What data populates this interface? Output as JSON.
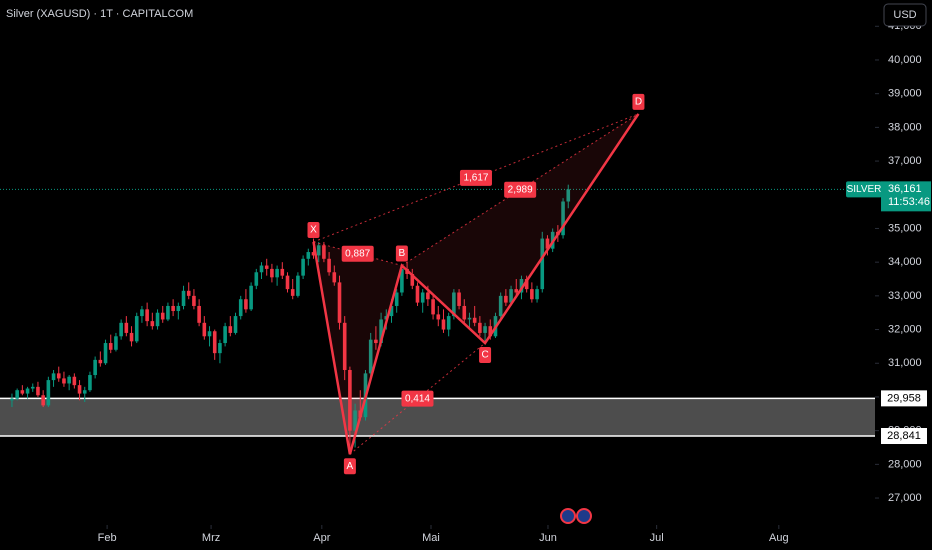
{
  "chart_data": {
    "type": "candlestick",
    "title": "Silver (XAGUSD) · 1T · CAPITALCOM",
    "currency": "USD",
    "colors": {
      "up": "#089981",
      "down": "#f23645",
      "pattern": "#f23645",
      "zone": "#ffffff"
    },
    "ylim": [
      26200,
      41780
    ],
    "yticks": [
      {
        "value": 27000,
        "label": "27,000"
      },
      {
        "value": 28000,
        "label": "28,000"
      },
      {
        "value": 29000,
        "label": "29,000"
      },
      {
        "value": 30000,
        "label": "30,000"
      },
      {
        "value": 31000,
        "label": "31,000"
      },
      {
        "value": 32000,
        "label": "32,000"
      },
      {
        "value": 33000,
        "label": "33,000"
      },
      {
        "value": 34000,
        "label": "34,000"
      },
      {
        "value": 35000,
        "label": "35,000"
      },
      {
        "value": 36000,
        "label": "36,000"
      },
      {
        "value": 37000,
        "label": "37,000"
      },
      {
        "value": 38000,
        "label": "38,000"
      },
      {
        "value": 39000,
        "label": "39,000"
      },
      {
        "value": 40000,
        "label": "40,000"
      },
      {
        "value": 41000,
        "label": "41,000"
      }
    ],
    "xlim": [
      -2.3,
      166
    ],
    "xticks": [
      {
        "value": 18.3,
        "label": "Feb"
      },
      {
        "value": 38.3,
        "label": "Mrz"
      },
      {
        "value": 59.6,
        "label": "Apr"
      },
      {
        "value": 80.6,
        "label": "Mai"
      },
      {
        "value": 103.1,
        "label": "Jun"
      },
      {
        "value": 124,
        "label": "Jul"
      },
      {
        "value": 147.5,
        "label": "Aug"
      }
    ],
    "candles": [
      [
        29900,
        30100,
        29700,
        29950
      ],
      [
        29950,
        30250,
        29900,
        30200
      ],
      [
        30200,
        30350,
        30050,
        30100
      ],
      [
        30100,
        30300,
        29950,
        30250
      ],
      [
        30250,
        30400,
        30150,
        30300
      ],
      [
        30300,
        30450,
        30000,
        30050
      ],
      [
        30050,
        30200,
        29700,
        29750
      ],
      [
        29750,
        30600,
        29700,
        30500
      ],
      [
        30500,
        30800,
        30300,
        30700
      ],
      [
        30700,
        30900,
        30450,
        30550
      ],
      [
        30550,
        30750,
        30300,
        30400
      ],
      [
        30400,
        30650,
        30200,
        30600
      ],
      [
        30600,
        30700,
        30250,
        30350
      ],
      [
        30350,
        30500,
        29900,
        30100
      ],
      [
        30100,
        30300,
        29850,
        30200
      ],
      [
        30200,
        30750,
        30150,
        30650
      ],
      [
        30650,
        31200,
        30550,
        31100
      ],
      [
        31100,
        31350,
        30900,
        31000
      ],
      [
        31000,
        31700,
        30950,
        31600
      ],
      [
        31600,
        31850,
        31300,
        31400
      ],
      [
        31400,
        31900,
        31350,
        31800
      ],
      [
        31800,
        32300,
        31700,
        32200
      ],
      [
        32200,
        32400,
        31800,
        31900
      ],
      [
        31900,
        32100,
        31500,
        31650
      ],
      [
        31650,
        32500,
        31600,
        32400
      ],
      [
        32400,
        32700,
        32200,
        32600
      ],
      [
        32600,
        32800,
        32100,
        32250
      ],
      [
        32250,
        32500,
        32000,
        32100
      ],
      [
        32100,
        32600,
        32000,
        32500
      ],
      [
        32500,
        32700,
        32200,
        32300
      ],
      [
        32300,
        32800,
        32250,
        32700
      ],
      [
        32700,
        32900,
        32400,
        32550
      ],
      [
        32550,
        32800,
        32300,
        32700
      ],
      [
        32700,
        33300,
        32600,
        33150
      ],
      [
        33150,
        33400,
        32900,
        33000
      ],
      [
        33000,
        33200,
        32600,
        32700
      ],
      [
        32700,
        32900,
        32100,
        32200
      ],
      [
        32200,
        32400,
        31700,
        31800
      ],
      [
        31800,
        32100,
        31500,
        31950
      ],
      [
        31950,
        32000,
        31100,
        31300
      ],
      [
        31300,
        31700,
        31000,
        31600
      ],
      [
        31600,
        32200,
        31500,
        32100
      ],
      [
        32100,
        32400,
        31800,
        31900
      ],
      [
        31900,
        32500,
        31850,
        32400
      ],
      [
        32400,
        33000,
        32300,
        32900
      ],
      [
        32900,
        33200,
        32500,
        32600
      ],
      [
        32600,
        33400,
        32550,
        33300
      ],
      [
        33300,
        33800,
        33200,
        33700
      ],
      [
        33700,
        34000,
        33500,
        33900
      ],
      [
        33900,
        34100,
        33600,
        33800
      ],
      [
        33800,
        33950,
        33400,
        33550
      ],
      [
        33550,
        33900,
        33300,
        33800
      ],
      [
        33800,
        34000,
        33500,
        33600
      ],
      [
        33600,
        33700,
        33100,
        33200
      ],
      [
        33200,
        33500,
        32900,
        33000
      ],
      [
        33000,
        33700,
        32950,
        33600
      ],
      [
        33600,
        34200,
        33500,
        34100
      ],
      [
        34100,
        34400,
        33900,
        34300
      ],
      [
        34300,
        34700,
        34100,
        34200
      ],
      [
        34200,
        34600,
        34000,
        34500
      ],
      [
        34500,
        34600,
        34000,
        34100
      ],
      [
        34100,
        34300,
        33600,
        33700
      ],
      [
        33700,
        33900,
        33300,
        33400
      ],
      [
        33400,
        33600,
        32000,
        32200
      ],
      [
        32200,
        32400,
        30500,
        30800
      ],
      [
        30800,
        30900,
        28300,
        29000
      ],
      [
        29000,
        29800,
        28500,
        29600
      ],
      [
        29600,
        30200,
        29300,
        29400
      ],
      [
        29400,
        30800,
        29300,
        30700
      ],
      [
        30700,
        31900,
        30600,
        31700
      ],
      [
        31700,
        32100,
        31400,
        31600
      ],
      [
        31600,
        32500,
        31500,
        32300
      ],
      [
        32300,
        32600,
        32000,
        32400
      ],
      [
        32400,
        32900,
        32200,
        32700
      ],
      [
        32700,
        33200,
        32500,
        33100
      ],
      [
        33100,
        33900,
        33000,
        33800
      ],
      [
        33800,
        34000,
        33500,
        33650
      ],
      [
        33650,
        33800,
        33200,
        33300
      ],
      [
        33300,
        33400,
        32700,
        32800
      ],
      [
        32800,
        33200,
        32500,
        33100
      ],
      [
        33100,
        33300,
        32700,
        32900
      ],
      [
        32900,
        33000,
        32300,
        32450
      ],
      [
        32450,
        32700,
        32100,
        32300
      ],
      [
        32300,
        32600,
        31900,
        32000
      ],
      [
        32000,
        32500,
        31800,
        32400
      ],
      [
        32400,
        33200,
        32300,
        33100
      ],
      [
        33100,
        33200,
        32600,
        32700
      ],
      [
        32700,
        32900,
        32200,
        32300
      ],
      [
        32300,
        32500,
        32000,
        32350
      ],
      [
        32350,
        32700,
        32100,
        32200
      ],
      [
        32200,
        32400,
        31800,
        31900
      ],
      [
        31900,
        32200,
        31600,
        32100
      ],
      [
        32100,
        32300,
        31700,
        31800
      ],
      [
        31800,
        32500,
        31750,
        32400
      ],
      [
        32400,
        33100,
        32300,
        33000
      ],
      [
        33000,
        33200,
        32700,
        32800
      ],
      [
        32800,
        33300,
        32700,
        33200
      ],
      [
        33200,
        33500,
        33000,
        33100
      ],
      [
        33100,
        33600,
        32900,
        33500
      ],
      [
        33500,
        33600,
        33100,
        33200
      ],
      [
        33200,
        33400,
        32800,
        32900
      ],
      [
        32900,
        33300,
        32800,
        33200
      ],
      [
        33200,
        34900,
        33100,
        34700
      ],
      [
        34700,
        34800,
        34200,
        34400
      ],
      [
        34400,
        35000,
        34300,
        34900
      ],
      [
        34900,
        35100,
        34600,
        34800
      ],
      [
        34800,
        35900,
        34700,
        35800
      ],
      [
        35800,
        36300,
        35600,
        36161
      ]
    ],
    "pattern": {
      "points": [
        {
          "label": "X",
          "x": 58,
          "price": 34600
        },
        {
          "label": "A",
          "x": 65,
          "price": 28300
        },
        {
          "label": "B",
          "x": 75,
          "price": 33900
        },
        {
          "label": "C",
          "x": 91,
          "price": 31600
        },
        {
          "label": "D",
          "x": 120.5,
          "price": 38400
        }
      ],
      "ratios": [
        {
          "value": 0.887,
          "label": "0,887"
        },
        {
          "value": 0.414,
          "label": "0,414"
        },
        {
          "value": 1.617,
          "label": "1,617"
        },
        {
          "value": 2.989,
          "label": "2,989"
        }
      ]
    },
    "zone": {
      "top": {
        "value": 29958,
        "label": "29,958"
      },
      "bottom": {
        "value": 28841,
        "label": "28,841"
      }
    },
    "last_price": {
      "symbol": "SILVER",
      "value": 36161,
      "label": "36,161",
      "countdown": "11:53:46"
    }
  }
}
